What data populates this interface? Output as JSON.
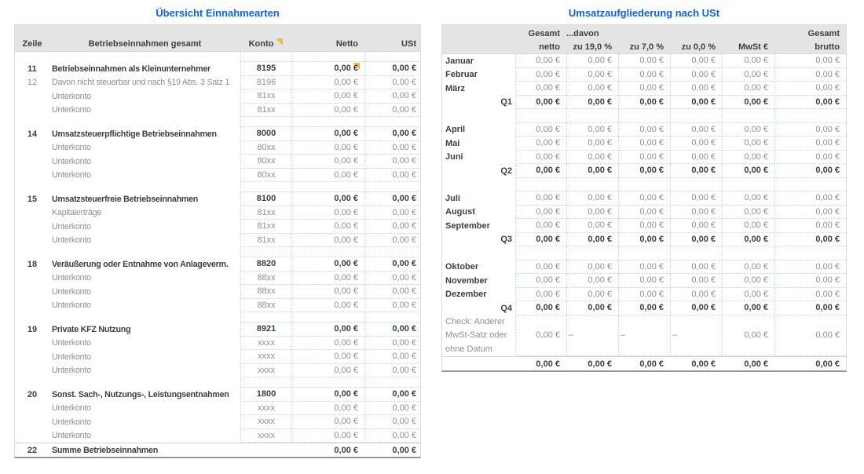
{
  "colors": {
    "title_blue": "#0e63d6",
    "header_gray": "#e4e4e4",
    "text_dark": "#3e3e41",
    "text_gray": "#8f9094",
    "comment_marker_yellow": "#f2bb3d",
    "grid_dotted": "#ccd4dd",
    "bottom_rule_gray": "#96969a"
  },
  "left_table": {
    "title": "Übersicht Einnahmearten",
    "columns": [
      "Zeile",
      "Betriebseinnahmen gesamt",
      "Konto",
      "Netto",
      "USt"
    ],
    "konto_header_has_comment_marker": true,
    "rows": [
      {
        "style": "blank"
      },
      {
        "style": "main",
        "line": "11",
        "label": "Betriebseinnahmen als Kleinunternehmer",
        "konto": "8195",
        "netto": "0,00 €",
        "ust": "0,00 €",
        "marker": true
      },
      {
        "style": "sub",
        "line": "12",
        "label": "Davon nicht steuerbar und nach §19 Abs. 3 Satz 1",
        "konto": "8196",
        "netto": "0,00 €",
        "ust": "0,00 €"
      },
      {
        "style": "sub",
        "line": "",
        "label": "Unterkonto",
        "konto": "81xx",
        "netto": "0,00 €",
        "ust": "0,00 €"
      },
      {
        "style": "sub",
        "line": "",
        "label": "Unterkonto",
        "konto": "81xx",
        "netto": "0,00 €",
        "ust": "0,00 €"
      },
      {
        "style": "blank"
      },
      {
        "style": "main",
        "line": "14",
        "label": "Umsatzsteuerpflichtige Betriebseinnahmen",
        "konto": "8000",
        "netto": "0,00 €",
        "ust": "0,00 €"
      },
      {
        "style": "sub",
        "line": "",
        "label": "Unterkonto",
        "konto": "80xx",
        "netto": "0,00 €",
        "ust": "0,00 €"
      },
      {
        "style": "sub",
        "line": "",
        "label": "Unterkonto",
        "konto": "80xx",
        "netto": "0,00 €",
        "ust": "0,00 €"
      },
      {
        "style": "sub",
        "line": "",
        "label": "Unterkonto",
        "konto": "80xx",
        "netto": "0,00 €",
        "ust": "0,00 €"
      },
      {
        "style": "blank"
      },
      {
        "style": "main",
        "line": "15",
        "label": "Umsatzsteuerfreie Betriebseinnahmen",
        "konto": "8100",
        "netto": "0,00 €",
        "ust": "0,00 €"
      },
      {
        "style": "sub",
        "line": "",
        "label": "Kapitalerträge",
        "konto": "81xx",
        "netto": "0,00 €",
        "ust": "0,00 €"
      },
      {
        "style": "sub",
        "line": "",
        "label": "Unterkonto",
        "konto": "81xx",
        "netto": "0,00 €",
        "ust": "0,00 €"
      },
      {
        "style": "sub",
        "line": "",
        "label": "Unterkonto",
        "konto": "81xx",
        "netto": "0,00 €",
        "ust": "0,00 €"
      },
      {
        "style": "blank"
      },
      {
        "style": "main",
        "line": "18",
        "label": "Veräußerung oder Entnahme von Anlageverm.",
        "konto": "8820",
        "netto": "0,00 €",
        "ust": "0,00 €"
      },
      {
        "style": "sub",
        "line": "",
        "label": "Unterkonto",
        "konto": "88xx",
        "netto": "0,00 €",
        "ust": "0,00 €"
      },
      {
        "style": "sub",
        "line": "",
        "label": "Unterkonto",
        "konto": "88xx",
        "netto": "0,00 €",
        "ust": "0,00 €"
      },
      {
        "style": "sub",
        "line": "",
        "label": "Unterkonto",
        "konto": "88xx",
        "netto": "0,00 €",
        "ust": "0,00 €"
      },
      {
        "style": "blank"
      },
      {
        "style": "main",
        "line": "19",
        "label": "Private KFZ Nutzung",
        "konto": "8921",
        "netto": "0,00 €",
        "ust": "0,00 €"
      },
      {
        "style": "sub",
        "line": "",
        "label": "Unterkonto",
        "konto": "xxxx",
        "netto": "0,00 €",
        "ust": "0,00 €"
      },
      {
        "style": "sub",
        "line": "",
        "label": "Unterkonto",
        "konto": "xxxx",
        "netto": "0,00 €",
        "ust": "0,00 €"
      },
      {
        "style": "sub",
        "line": "",
        "label": "Unterkonto",
        "konto": "xxxx",
        "netto": "0,00 €",
        "ust": "0,00 €"
      },
      {
        "style": "blank"
      },
      {
        "style": "main",
        "line": "20",
        "label": "Sonst. Sach-, Nutzungs-, Leistungsentnahmen",
        "konto": "1800",
        "netto": "0,00 €",
        "ust": "0,00 €"
      },
      {
        "style": "sub",
        "line": "",
        "label": "Unterkonto",
        "konto": "xxxx",
        "netto": "0,00 €",
        "ust": "0,00 €"
      },
      {
        "style": "sub",
        "line": "",
        "label": "Unterkonto",
        "konto": "xxxx",
        "netto": "0,00 €",
        "ust": "0,00 €"
      },
      {
        "style": "sub",
        "line": "",
        "label": "Unterkonto",
        "konto": "xxxx",
        "netto": "0,00 €",
        "ust": "0,00 €"
      },
      {
        "style": "sum",
        "line": "22",
        "label": "Summe Betriebseinnahmen",
        "konto": "",
        "netto": "0,00 €",
        "ust": "0,00 €"
      }
    ]
  },
  "right_table": {
    "title": "Umsatzaufgliederung nach USt",
    "header_row1": {
      "gesamt1": "Gesamt",
      "davon": "...davon",
      "gesamt2": "Gesamt"
    },
    "header_row2": [
      "netto",
      "zu 19,0 %",
      "zu 7,0 %",
      "zu 0,0 %",
      "MwSt €",
      "brutto"
    ],
    "rows": [
      {
        "style": "month",
        "label": "Januar",
        "values": [
          "0,00 €",
          "0,00 €",
          "0,00 €",
          "0,00 €",
          "0,00 €",
          "0,00 €"
        ]
      },
      {
        "style": "month",
        "label": "Februar",
        "values": [
          "0,00 €",
          "0,00 €",
          "0,00 €",
          "0,00 €",
          "0,00 €",
          "0,00 €"
        ]
      },
      {
        "style": "month",
        "label": "März",
        "values": [
          "0,00 €",
          "0,00 €",
          "0,00 €",
          "0,00 €",
          "0,00 €",
          "0,00 €"
        ]
      },
      {
        "style": "quarter",
        "label": "Q1",
        "values": [
          "0,00 €",
          "0,00 €",
          "0,00 €",
          "0,00 €",
          "0,00 €",
          "0,00 €"
        ]
      },
      {
        "style": "blank"
      },
      {
        "style": "month",
        "label": "April",
        "values": [
          "0,00 €",
          "0,00 €",
          "0,00 €",
          "0,00 €",
          "0,00 €",
          "0,00 €"
        ]
      },
      {
        "style": "month",
        "label": "Mai",
        "values": [
          "0,00 €",
          "0,00 €",
          "0,00 €",
          "0,00 €",
          "0,00 €",
          "0,00 €"
        ]
      },
      {
        "style": "month",
        "label": "Juni",
        "values": [
          "0,00 €",
          "0,00 €",
          "0,00 €",
          "0,00 €",
          "0,00 €",
          "0,00 €"
        ]
      },
      {
        "style": "quarter",
        "label": "Q2",
        "values": [
          "0,00 €",
          "0,00 €",
          "0,00 €",
          "0,00 €",
          "0,00 €",
          "0,00 €"
        ]
      },
      {
        "style": "blank"
      },
      {
        "style": "month",
        "label": "Juli",
        "values": [
          "0,00 €",
          "0,00 €",
          "0,00 €",
          "0,00 €",
          "0,00 €",
          "0,00 €"
        ]
      },
      {
        "style": "month",
        "label": "August",
        "values": [
          "0,00 €",
          "0,00 €",
          "0,00 €",
          "0,00 €",
          "0,00 €",
          "0,00 €"
        ]
      },
      {
        "style": "month",
        "label": "September",
        "values": [
          "0,00 €",
          "0,00 €",
          "0,00 €",
          "0,00 €",
          "0,00 €",
          "0,00 €"
        ]
      },
      {
        "style": "quarter",
        "label": "Q3",
        "values": [
          "0,00 €",
          "0,00 €",
          "0,00 €",
          "0,00 €",
          "0,00 €",
          "0,00 €"
        ]
      },
      {
        "style": "blank"
      },
      {
        "style": "month",
        "label": "Oktober",
        "values": [
          "0,00 €",
          "0,00 €",
          "0,00 €",
          "0,00 €",
          "0,00 €",
          "0,00 €"
        ]
      },
      {
        "style": "month",
        "label": "November",
        "values": [
          "0,00 €",
          "0,00 €",
          "0,00 €",
          "0,00 €",
          "0,00 €",
          "0,00 €"
        ]
      },
      {
        "style": "month",
        "label": "Dezember",
        "values": [
          "0,00 €",
          "0,00 €",
          "0,00 €",
          "0,00 €",
          "0,00 €",
          "0,00 €"
        ]
      },
      {
        "style": "quarter",
        "label": "Q4",
        "values": [
          "0,00 €",
          "0,00 €",
          "0,00 €",
          "0,00 €",
          "0,00 €",
          "0,00 €"
        ]
      },
      {
        "style": "check",
        "label": "Check: Anderer MwSt-Satz oder ohne Datum",
        "values": [
          "0,00 €",
          "–",
          "–",
          "–",
          "0,00 €",
          "0,00 €"
        ]
      },
      {
        "style": "total",
        "label": "",
        "values": [
          "0,00 €",
          "0,00 €",
          "0,00 €",
          "0,00 €",
          "0,00 €",
          "0,00 €"
        ]
      }
    ]
  }
}
